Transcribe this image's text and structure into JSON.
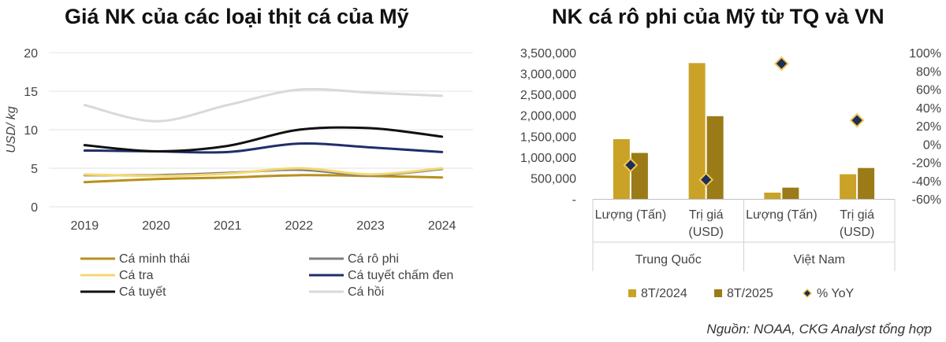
{
  "chart_data": [
    {
      "type": "line",
      "title": "Giá NK của các loại thịt cá của Mỹ",
      "ylabel": "USD/ kg",
      "xlabel": "",
      "ylim": [
        0,
        20
      ],
      "yticks": [
        "0",
        "5",
        "10",
        "15",
        "20"
      ],
      "x": [
        "2019",
        "2020",
        "2021",
        "2022",
        "2023",
        "2024"
      ],
      "grid": "horizontal",
      "legend_position": "bottom",
      "series": [
        {
          "name": "Cá minh thái",
          "color": "#b8901c",
          "values": [
            3.2,
            3.6,
            3.8,
            4.1,
            4.0,
            3.8
          ]
        },
        {
          "name": "Cá rô phi",
          "color": "#7f7f7f",
          "values": [
            4.1,
            4.1,
            4.4,
            4.8,
            4.1,
            4.9
          ]
        },
        {
          "name": "Cá tra",
          "color": "#f5d76e",
          "values": [
            4.2,
            4.0,
            4.3,
            5.0,
            4.2,
            5.0
          ]
        },
        {
          "name": "Cá tuyết chấm đen",
          "color": "#1f2e6b",
          "values": [
            7.3,
            7.2,
            7.1,
            8.2,
            7.7,
            7.1
          ]
        },
        {
          "name": "Cá tuyết",
          "color": "#111111",
          "values": [
            8.0,
            7.2,
            7.9,
            10.0,
            10.2,
            9.1
          ]
        },
        {
          "name": "Cá hồi",
          "color": "#d9d9d9",
          "values": [
            13.2,
            11.1,
            13.2,
            15.2,
            14.8,
            14.4
          ]
        }
      ]
    },
    {
      "type": "bar",
      "title": "NK cá rô phi của Mỹ từ TQ và VN",
      "groups": [
        "Trung Quốc",
        "Việt Nam"
      ],
      "categories": [
        "Lượng (Tấn)",
        "Trị giá (USD)",
        "Lượng (Tấn)",
        "Trị giá (USD)"
      ],
      "category_lines": [
        [
          "Lượng (Tấn)"
        ],
        [
          "Trị giá",
          "(USD)"
        ],
        [
          "Lượng (Tấn)"
        ],
        [
          "Trị giá",
          "(USD)"
        ]
      ],
      "ylim": [
        0,
        3500000
      ],
      "yticks": [
        "-",
        "500,000",
        "1,000,000",
        "1,500,000",
        "2,000,000",
        "2,500,000",
        "3,000,000",
        "3,500,000"
      ],
      "y2lim": [
        -60,
        100
      ],
      "y2ticks": [
        "-60%",
        "-40%",
        "-20%",
        "0%",
        "20%",
        "40%",
        "60%",
        "80%",
        "100%"
      ],
      "legend_position": "bottom",
      "series": [
        {
          "name": "8T/2024",
          "color": "#c9a227",
          "values": [
            1430000,
            3250000,
            150000,
            590000
          ]
        },
        {
          "name": "8T/2025",
          "color": "#9a7b18",
          "values": [
            1100000,
            1980000,
            270000,
            740000
          ]
        },
        {
          "name": "% YoY",
          "type": "scatter",
          "axis": "secondary",
          "color": "#1f2e5a",
          "values": [
            -23,
            -39,
            88,
            26
          ]
        }
      ]
    }
  ],
  "source": "Nguồn: NOAA, CKG Analyst tổng hợp"
}
